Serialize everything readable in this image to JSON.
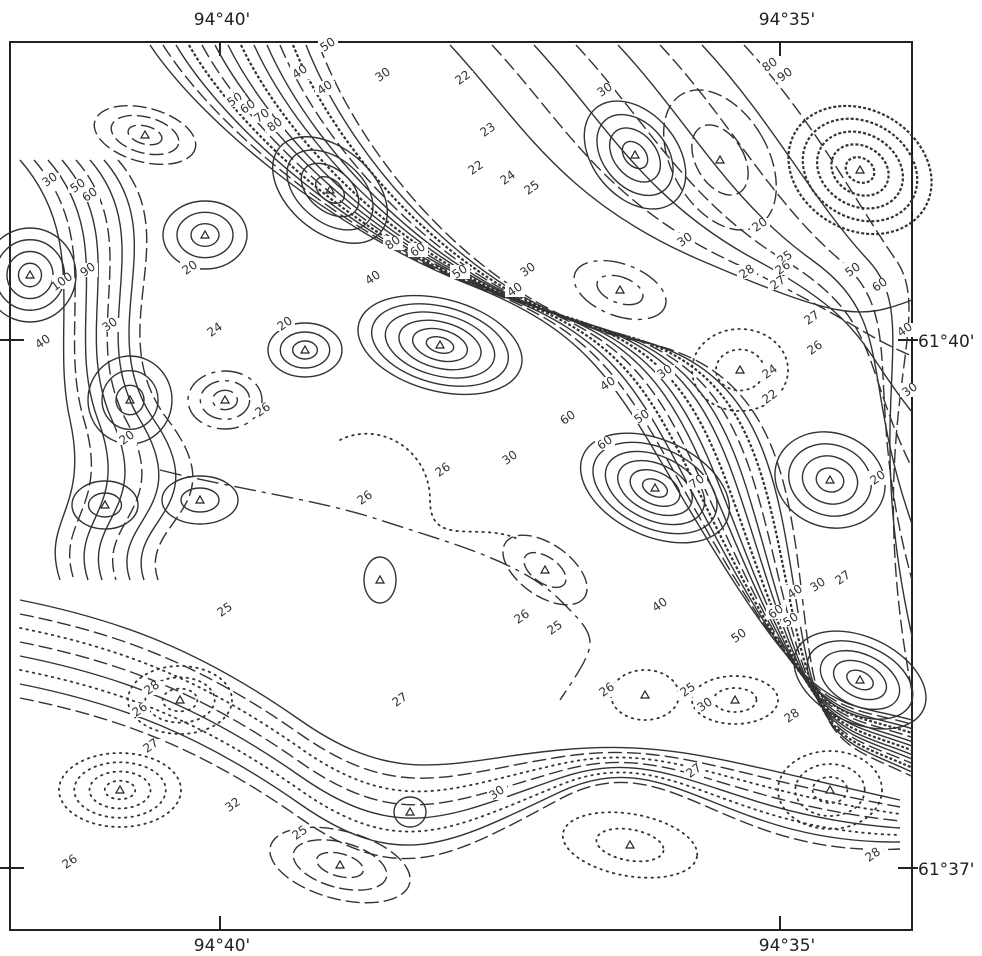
{
  "coordinates": {
    "top": [
      "94°40'",
      "94°35'"
    ],
    "bottom": [
      "94°40'",
      "94°35'"
    ],
    "right": [
      "61°40'",
      "61°37'"
    ]
  },
  "contour_labels": [
    50,
    40,
    40,
    30,
    22,
    30,
    80,
    90,
    50,
    60,
    70,
    80,
    23,
    22,
    24,
    25,
    30,
    50,
    60,
    100,
    90,
    80,
    60,
    20,
    40,
    50,
    30,
    40,
    30,
    20,
    25,
    26,
    28,
    27,
    50,
    60,
    40,
    30,
    24,
    20,
    27,
    26,
    40,
    24,
    22,
    26,
    30,
    20,
    40,
    30,
    50,
    60,
    60,
    30,
    26,
    26,
    20,
    70,
    25,
    40,
    26,
    25,
    50,
    60,
    50,
    40,
    30,
    27,
    28,
    26,
    27,
    26,
    25,
    30,
    28,
    27,
    27,
    30,
    32,
    25,
    26,
    28
  ]
}
